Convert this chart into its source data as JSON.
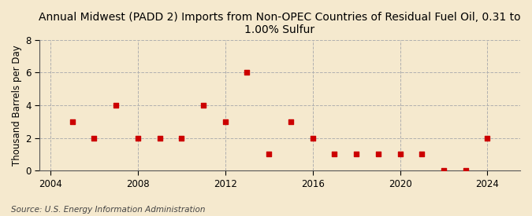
{
  "title": "Annual Midwest (PADD 2) Imports from Non-OPEC Countries of Residual Fuel Oil, 0.31 to\n1.00% Sulfur",
  "ylabel": "Thousand Barrels per Day",
  "source": "Source: U.S. Energy Information Administration",
  "years": [
    2005,
    2006,
    2007,
    2008,
    2009,
    2010,
    2011,
    2012,
    2013,
    2014,
    2015,
    2016,
    2017,
    2018,
    2019,
    2020,
    2021,
    2022,
    2023,
    2024
  ],
  "values": [
    3,
    2,
    4,
    2,
    2,
    2,
    4,
    3,
    6,
    1,
    3,
    2,
    1,
    1,
    1,
    1,
    1,
    0,
    0,
    2
  ],
  "marker_color": "#cc0000",
  "marker": "s",
  "marker_size": 4,
  "xlim": [
    2003.5,
    2025.5
  ],
  "ylim": [
    0,
    8
  ],
  "yticks": [
    0,
    2,
    4,
    6,
    8
  ],
  "xticks": [
    2004,
    2008,
    2012,
    2016,
    2020,
    2024
  ],
  "bg_color": "#f5e9ce",
  "plot_bg_color": "#f5e9ce",
  "grid_color": "#b0b0b0",
  "vline_color": "#b0b0b0",
  "title_fontsize": 10,
  "label_fontsize": 8.5,
  "tick_fontsize": 8.5,
  "source_fontsize": 7.5
}
